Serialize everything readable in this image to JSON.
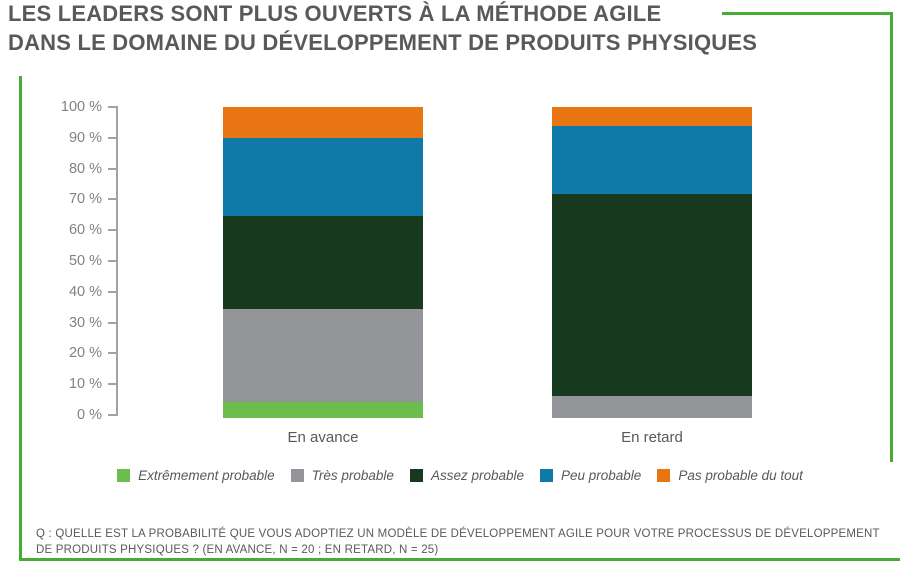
{
  "page_title": {
    "line1": "LES LEADERS SONT PLUS OUVERTS À LA MÉTHODE AGILE",
    "line2": "DANS LE DOMAINE DU DÉVELOPPEMENT DE PRODUITS PHYSIQUES"
  },
  "chart_data": {
    "type": "bar",
    "subtype": "stacked-percentage-columns",
    "categories": [
      "En avance",
      "En retard"
    ],
    "series": [
      {
        "name": "Extrêmement probable",
        "color": "#6cbe4c",
        "values": [
          5,
          0
        ]
      },
      {
        "name": "Très probable",
        "color": "#939598",
        "values": [
          30,
          7
        ]
      },
      {
        "name": "Assez probable",
        "color": "#173a1f",
        "values": [
          30,
          65
        ]
      },
      {
        "name": "Peu probable",
        "color": "#0f79a7",
        "values": [
          25,
          22
        ]
      },
      {
        "name": "Pas probable du tout",
        "color": "#e87511",
        "values": [
          10,
          6
        ]
      }
    ],
    "ylim": [
      0,
      100
    ],
    "ytick_step": 10,
    "ytick_suffix": " %",
    "grid": false,
    "legend_position": "bottom"
  },
  "footnote": {
    "line1": "Q : QUELLE EST LA PROBABILITÉ QUE VOUS ADOPTIEZ UN MODÈLE DE DÉVELOPPEMENT AGILE POUR VOTRE PROCESSUS DE DÉVELOPPEMENT",
    "line2": "DE PRODUITS PHYSIQUES ? (EN AVANCE, N = 20 ; EN RETARD, N = 25)"
  },
  "theme": {
    "frame_green": "#47ab34",
    "heading_gray": "#58595b",
    "axis_gray": "#a0a2a5",
    "tick_label_gray": "#808285"
  }
}
